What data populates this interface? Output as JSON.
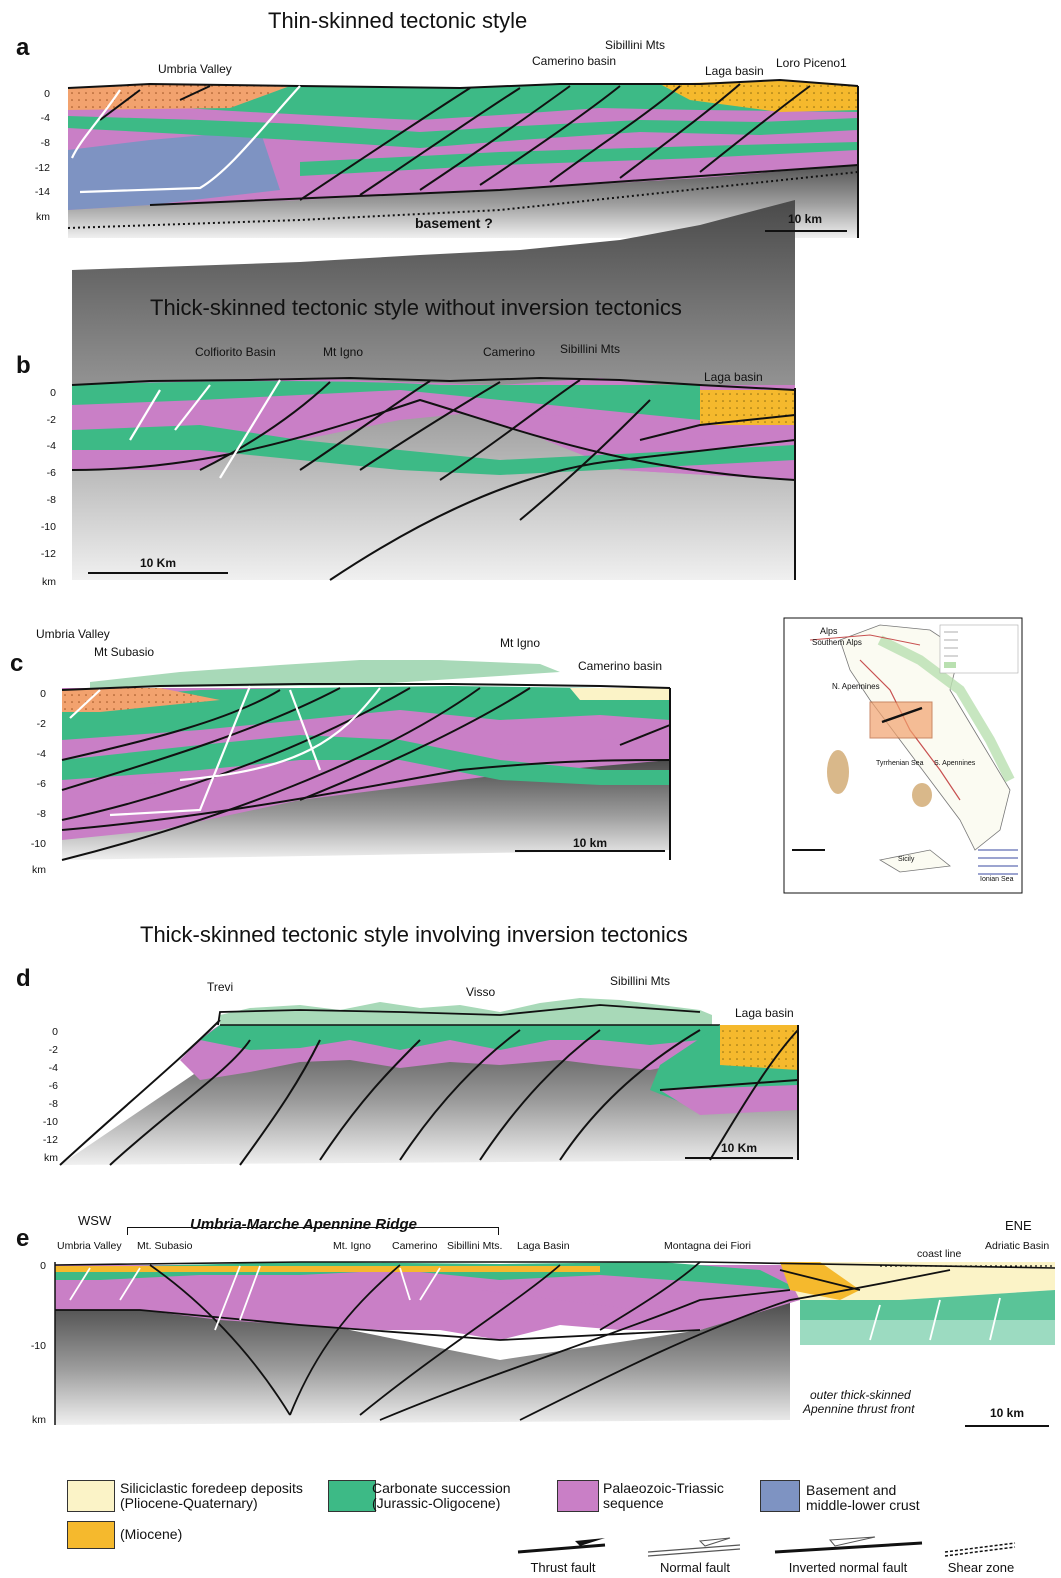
{
  "colors": {
    "carbonate": "#3dba86",
    "carbonate_light": "#a8d9b8",
    "palaeozoic": "#c97fc6",
    "basement": "#7e93c2",
    "miocene": "#f5b92d",
    "pliocene": "#fbf3c7",
    "orange": "#f2a26e",
    "crust_dark": "#555555",
    "crust_light": "#e8e8e8"
  },
  "titles": {
    "a": "Thin-skinned tectonic style",
    "b": "Thick-skinned tectonic style without inversion tectonics",
    "d": "Thick-skinned tectonic style involving inversion tectonics"
  },
  "panel_a": {
    "letter": "a",
    "labels": [
      "Umbria Valley",
      "Camerino basin",
      "Sibillini Mts",
      "Laga basin",
      "Loro Piceno1"
    ],
    "depth_ticks": [
      "0",
      "-4",
      "-8",
      "-12",
      "-14",
      "km"
    ],
    "basement_label": "basement ?",
    "scale": "10 km"
  },
  "panel_b": {
    "letter": "b",
    "labels": [
      "Colfiorito Basin",
      "Mt Igno",
      "Camerino",
      "Sibillini Mts",
      "Laga basin"
    ],
    "depth_ticks": [
      "0",
      "-2",
      "-4",
      "-6",
      "-8",
      "-10",
      "-12",
      "km"
    ],
    "scale": "10 Km"
  },
  "panel_c": {
    "letter": "c",
    "labels": [
      "Umbria Valley",
      "Mt Subasio",
      "Mt Igno",
      "Camerino basin"
    ],
    "depth_ticks": [
      "0",
      "-2",
      "-4",
      "-6",
      "-8",
      "-10",
      "km"
    ],
    "scale": "10 km"
  },
  "panel_d": {
    "letter": "d",
    "labels": [
      "Trevi",
      "Visso",
      "Sibillini Mts",
      "Laga basin"
    ],
    "depth_ticks": [
      "0",
      "-2",
      "-4",
      "-6",
      "-8",
      "-10",
      "-12",
      "km"
    ],
    "scale": "10 Km"
  },
  "panel_e": {
    "letter": "e",
    "wsw": "WSW",
    "ene": "ENE",
    "ridge": "Umbria-Marche Apennine Ridge",
    "labels": [
      "Umbria Valley",
      "Mt. Subasio",
      "Mt. Igno",
      "Camerino",
      "Sibillini Mts.",
      "Laga Basin",
      "Montagna dei Fiori",
      "coast line",
      "Adriatic Basin"
    ],
    "depth_ticks": [
      "0",
      "-10",
      "km"
    ],
    "front_label_1": "outer thick-skinned",
    "front_label_2": "Apennine thrust front",
    "scale": "10 km"
  },
  "inset_map": {
    "labels": [
      "Alps",
      "Southern Alps",
      "N. Apennines",
      "Tyrrhenian Sea",
      "S. Apennines",
      "Ionian Sea",
      "Sicily"
    ]
  },
  "legend": {
    "siliciclastic_1": "Siliciclastic foredeep deposits",
    "siliciclastic_2": "(Pliocene-Quaternary)",
    "miocene": "(Miocene)",
    "carbonate_1": "Carbonate succession",
    "carbonate_2": "(Jurassic-Oligocene)",
    "palaeozoic_1": "Palaeozoic-Triassic",
    "palaeozoic_2": "sequence",
    "basement_1": "Basement and",
    "basement_2": "middle-lower crust",
    "thrust": "Thrust fault",
    "normal": "Normal fault",
    "inverted": "Inverted normal fault",
    "shear": "Shear zone"
  }
}
